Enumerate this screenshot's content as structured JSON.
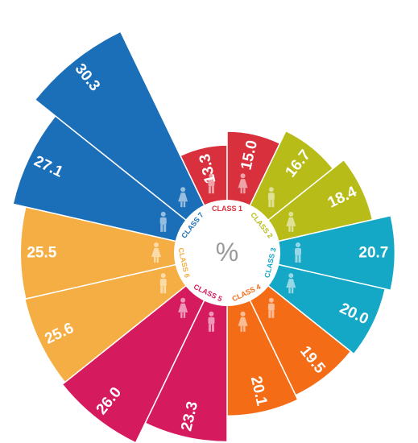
{
  "chart_data": {
    "type": "radial-bar",
    "center_label": "%",
    "classes": [
      {
        "label": "CLASS 1",
        "color": "#d8303c",
        "values": [
          13.3,
          15.0
        ]
      },
      {
        "label": "CLASS 2",
        "color": "#b8bc18",
        "values": [
          16.7,
          18.4
        ]
      },
      {
        "label": "CLASS 3",
        "color": "#15a8c6",
        "values": [
          20.7,
          20.0
        ]
      },
      {
        "label": "CLASS 4",
        "color": "#f56c17",
        "values": [
          19.5,
          20.1
        ]
      },
      {
        "label": "CLASS 5",
        "color": "#d61a5e",
        "values": [
          23.3,
          26.0
        ]
      },
      {
        "label": "CLASS 6",
        "color": "#f5ae43",
        "values": [
          25.6,
          25.5
        ]
      },
      {
        "label": "CLASS 7",
        "color": "#1b6fb8",
        "values": [
          27.1,
          30.3
        ]
      }
    ],
    "icons": [
      "male-icon",
      "female-icon"
    ]
  }
}
